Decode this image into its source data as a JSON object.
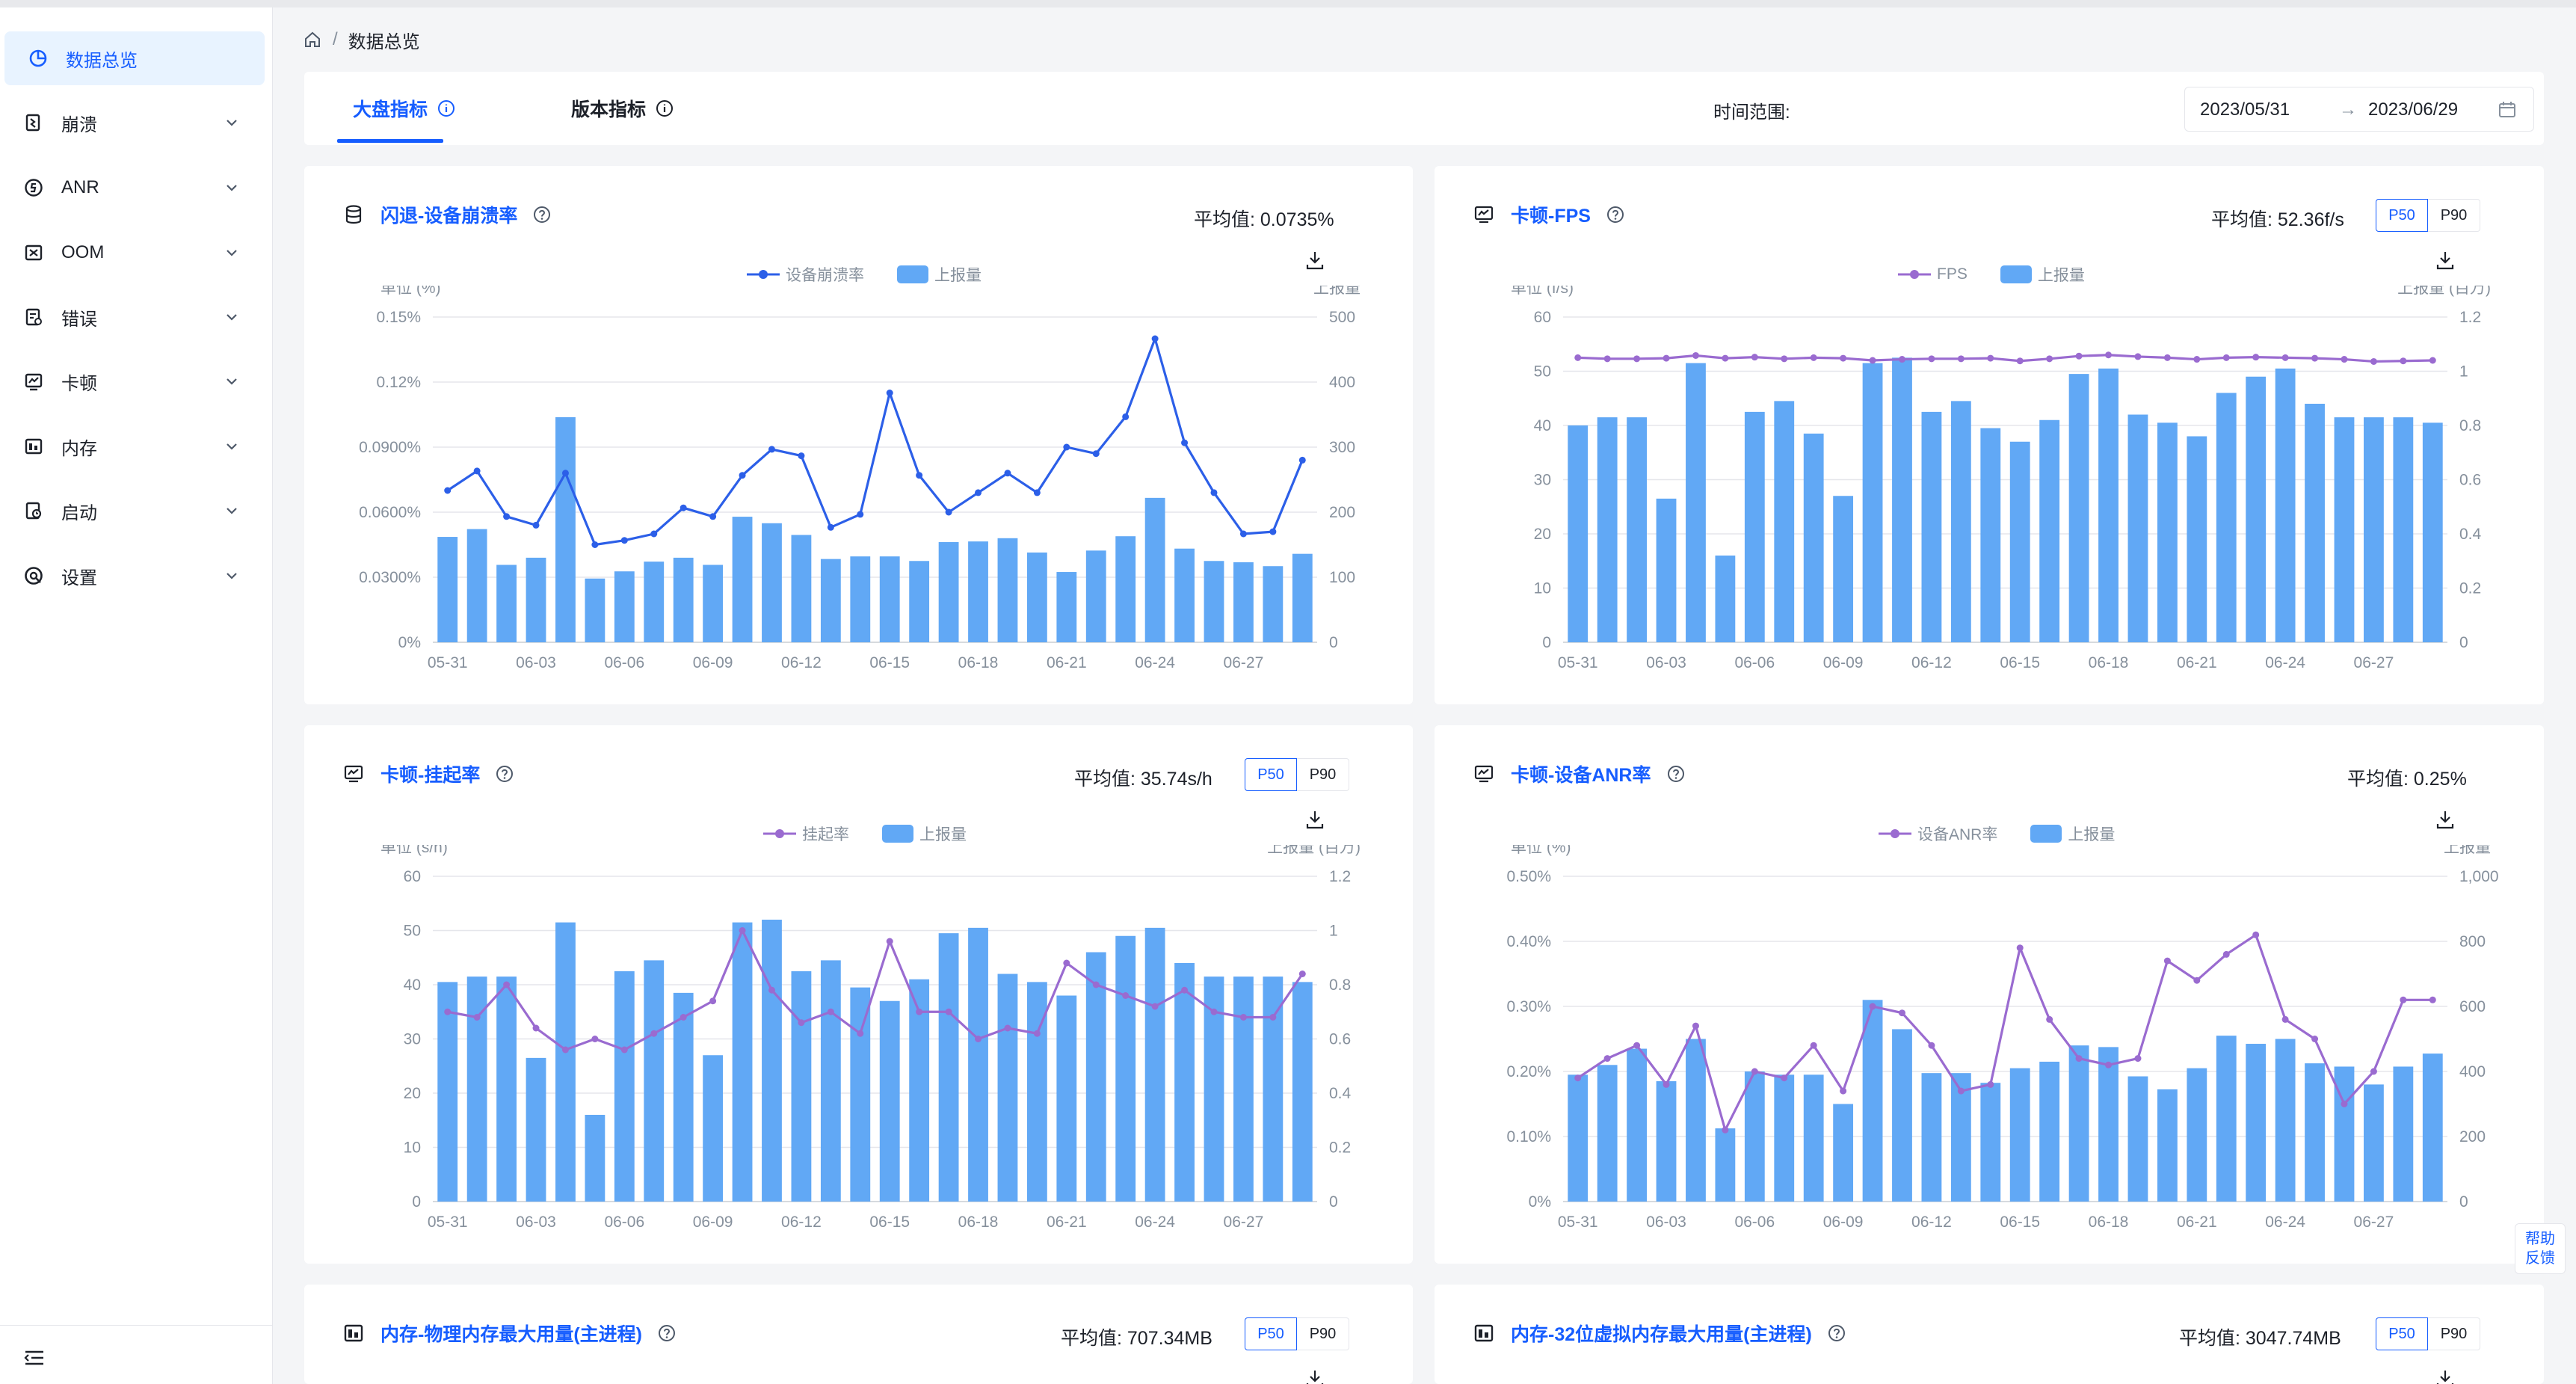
{
  "nav": {
    "items": [
      {
        "label": "数据总览",
        "icon": "pie-chart-icon",
        "active": true
      },
      {
        "label": "崩溃",
        "icon": "crash-icon"
      },
      {
        "label": "ANR",
        "icon": "anr-icon"
      },
      {
        "label": "OOM",
        "icon": "oom-icon"
      },
      {
        "label": "错误",
        "icon": "error-icon"
      },
      {
        "label": "卡顿",
        "icon": "lag-icon"
      },
      {
        "label": "内存",
        "icon": "memory-icon"
      },
      {
        "label": "启动",
        "icon": "launch-icon"
      },
      {
        "label": "设置",
        "icon": "settings-icon"
      }
    ]
  },
  "breadcrumb": {
    "home_icon": "home-icon",
    "current": "数据总览"
  },
  "tabs": [
    {
      "label": "大盘指标",
      "active": true
    },
    {
      "label": "版本指标",
      "active": false
    }
  ],
  "time_range": {
    "label": "时间范围:",
    "start": "2023/05/31",
    "arrow": "→",
    "end": "2023/06/29"
  },
  "help": {
    "line1": "帮助",
    "line2": "反馈"
  },
  "colors": {
    "accent": "#165dff",
    "bar": "#61a8f5",
    "blue_line": "#2c5fe8",
    "purple_line": "#9a6bd0"
  },
  "cards": [
    {
      "title": "闪退-设备崩溃率",
      "icon": "database-icon",
      "avg_label": "平均值:",
      "avg_value": "0.0735%",
      "percentiles": false,
      "chart_data": {
        "type": "bar+line",
        "line_name": "设备崩溃率",
        "bar_name": "上报量",
        "line_color": "#2c5fe8",
        "left_unit": "单位 (%)",
        "right_unit": "上报量",
        "left_ticks": [
          "0%",
          "0.0300%",
          "0.0600%",
          "0.0900%",
          "0.12%",
          "0.15%"
        ],
        "right_ticks": [
          "0",
          "100",
          "200",
          "300",
          "400",
          "500"
        ],
        "left_range": [
          0,
          0.15
        ],
        "right_range": [
          0,
          500
        ],
        "x_ticks": [
          "05-31",
          "06-03",
          "06-06",
          "06-09",
          "06-12",
          "06-15",
          "06-18",
          "06-21",
          "06-24",
          "06-27"
        ],
        "bars": [
          162,
          174,
          119,
          130,
          346,
          98,
          109,
          124,
          130,
          119,
          193,
          183,
          165,
          128,
          132,
          132,
          125,
          154,
          155,
          160,
          138,
          108,
          141,
          163,
          222,
          144,
          125,
          123,
          117,
          136
        ],
        "line": [
          0.07,
          0.079,
          0.058,
          0.054,
          0.078,
          0.045,
          0.047,
          0.05,
          0.062,
          0.058,
          0.077,
          0.089,
          0.086,
          0.053,
          0.059,
          0.115,
          0.077,
          0.06,
          0.069,
          0.078,
          0.069,
          0.09,
          0.087,
          0.104,
          0.14,
          0.092,
          0.069,
          0.05,
          0.051,
          0.084
        ]
      }
    },
    {
      "title": "卡顿-FPS",
      "icon": "monitor-chart-icon",
      "avg_label": "平均值:",
      "avg_value": "52.36f/s",
      "percentiles": true,
      "p50": "P50",
      "p90": "P90",
      "chart_data": {
        "type": "bar+line",
        "line_name": "FPS",
        "bar_name": "上报量",
        "line_color": "#9a6bd0",
        "left_unit": "单位 (f/s)",
        "right_unit": "上报量 (百万)",
        "left_ticks": [
          "0",
          "10",
          "20",
          "30",
          "40",
          "50",
          "60"
        ],
        "right_ticks": [
          "0",
          "0.2",
          "0.4",
          "0.6",
          "0.8",
          "1",
          "1.2"
        ],
        "left_range": [
          0,
          60
        ],
        "right_range": [
          0,
          1.2
        ],
        "x_ticks": [
          "05-31",
          "06-03",
          "06-06",
          "06-09",
          "06-12",
          "06-15",
          "06-18",
          "06-21",
          "06-24",
          "06-27"
        ],
        "bars": [
          0.8,
          0.83,
          0.83,
          0.53,
          1.03,
          0.32,
          0.85,
          0.89,
          0.77,
          0.54,
          1.03,
          1.05,
          0.85,
          0.89,
          0.79,
          0.74,
          0.82,
          0.99,
          1.01,
          0.84,
          0.81,
          0.76,
          0.92,
          0.98,
          1.01,
          0.88,
          0.83,
          0.83,
          0.83,
          0.81
        ],
        "line": [
          52.5,
          52.3,
          52.3,
          52.4,
          52.9,
          52.4,
          52.6,
          52.3,
          52.5,
          52.4,
          52.0,
          52.2,
          52.3,
          52.3,
          52.4,
          51.9,
          52.3,
          52.8,
          53.0,
          52.7,
          52.5,
          52.2,
          52.5,
          52.6,
          52.5,
          52.4,
          52.2,
          51.8,
          51.9,
          52.0
        ]
      }
    },
    {
      "title": "卡顿-挂起率",
      "icon": "monitor-chart-icon",
      "avg_label": "平均值:",
      "avg_value": "35.74s/h",
      "percentiles": true,
      "p50": "P50",
      "p90": "P90",
      "chart_data": {
        "type": "bar+line",
        "line_name": "挂起率",
        "bar_name": "上报量",
        "line_color": "#9a6bd0",
        "left_unit": "单位 (s/h)",
        "right_unit": "上报量 (百万)",
        "left_ticks": [
          "0",
          "10",
          "20",
          "30",
          "40",
          "50",
          "60"
        ],
        "right_ticks": [
          "0",
          "0.2",
          "0.4",
          "0.6",
          "0.8",
          "1",
          "1.2"
        ],
        "left_range": [
          0,
          60
        ],
        "right_range": [
          0,
          1.2
        ],
        "x_ticks": [
          "05-31",
          "06-03",
          "06-06",
          "06-09",
          "06-12",
          "06-15",
          "06-18",
          "06-21",
          "06-24",
          "06-27"
        ],
        "bars": [
          0.81,
          0.83,
          0.83,
          0.53,
          1.03,
          0.32,
          0.85,
          0.89,
          0.77,
          0.54,
          1.03,
          1.04,
          0.85,
          0.89,
          0.79,
          0.74,
          0.82,
          0.99,
          1.01,
          0.84,
          0.81,
          0.76,
          0.92,
          0.98,
          1.01,
          0.88,
          0.83,
          0.83,
          0.83,
          0.81
        ],
        "line": [
          35,
          34,
          40,
          32,
          28,
          30,
          28,
          31,
          34,
          37,
          50,
          39,
          33,
          35,
          31,
          48,
          35,
          35,
          30,
          32,
          31,
          44,
          40,
          38,
          36,
          39,
          35,
          34,
          34,
          42
        ]
      }
    },
    {
      "title": "卡顿-设备ANR率",
      "icon": "monitor-chart-icon",
      "avg_label": "平均值:",
      "avg_value": "0.25%",
      "percentiles": false,
      "chart_data": {
        "type": "bar+line",
        "line_name": "设备ANR率",
        "bar_name": "上报量",
        "line_color": "#9a6bd0",
        "left_unit": "单位 (%)",
        "right_unit": "上报量",
        "left_ticks": [
          "0%",
          "0.10%",
          "0.20%",
          "0.30%",
          "0.40%",
          "0.50%"
        ],
        "right_ticks": [
          "0",
          "200",
          "400",
          "600",
          "800",
          "1,000"
        ],
        "left_range": [
          0,
          0.5
        ],
        "right_range": [
          0,
          1000
        ],
        "x_ticks": [
          "05-31",
          "06-03",
          "06-06",
          "06-09",
          "06-12",
          "06-15",
          "06-18",
          "06-21",
          "06-24",
          "06-27"
        ],
        "bars": [
          390,
          420,
          470,
          370,
          500,
          225,
          400,
          390,
          390,
          300,
          620,
          530,
          395,
          395,
          365,
          410,
          430,
          480,
          475,
          385,
          345,
          410,
          510,
          485,
          500,
          425,
          415,
          360,
          415,
          455
        ],
        "line": [
          0.19,
          0.22,
          0.24,
          0.18,
          0.27,
          0.11,
          0.2,
          0.19,
          0.24,
          0.17,
          0.3,
          0.29,
          0.24,
          0.17,
          0.18,
          0.39,
          0.28,
          0.22,
          0.21,
          0.22,
          0.37,
          0.34,
          0.38,
          0.41,
          0.28,
          0.25,
          0.15,
          0.2,
          0.31,
          0.31
        ]
      }
    },
    {
      "title": "内存-物理内存最大用量(主进程)",
      "icon": "memory-icon",
      "avg_label": "平均值:",
      "avg_value": "707.34MB",
      "percentiles": true,
      "p50": "P50",
      "p90": "P90"
    },
    {
      "title": "内存-32位虚拟内存最大用量(主进程)",
      "icon": "memory-icon",
      "avg_label": "平均值:",
      "avg_value": "3047.74MB",
      "percentiles": true,
      "p50": "P50",
      "p90": "P90"
    }
  ]
}
